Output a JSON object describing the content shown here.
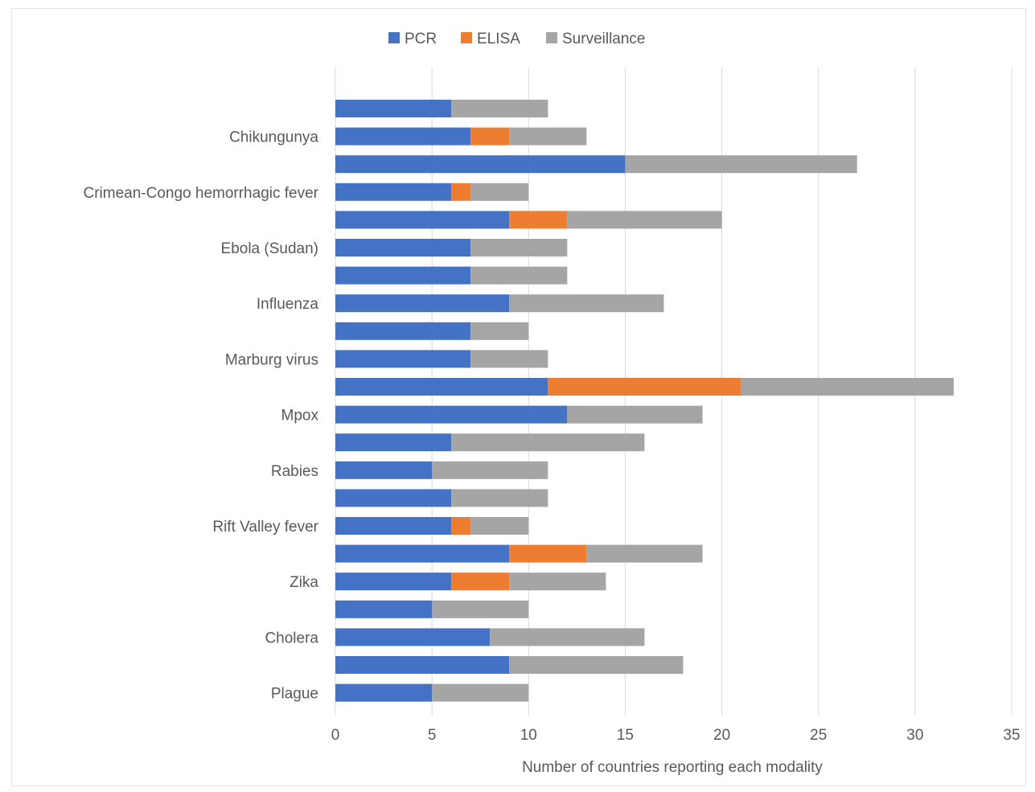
{
  "chart_data": {
    "type": "bar",
    "orientation": "horizontal",
    "stacked": true,
    "title": "",
    "xlabel": "Number of countries reporting each modality",
    "ylabel": "",
    "xlim": [
      0,
      35
    ],
    "x_ticks": [
      0,
      5,
      10,
      15,
      20,
      25,
      30,
      35
    ],
    "grid": "vertical",
    "legend_position": "top",
    "categories": [
      "",
      "Chikungunya",
      "",
      "Crimean-Congo hemorrhagic fever",
      "",
      "Ebola (Sudan)",
      "",
      "Influenza",
      "",
      "Marburg virus",
      "",
      "Mpox",
      "",
      "Rabies",
      "",
      "Rift Valley fever",
      "",
      "Zika",
      "",
      "Cholera",
      "",
      "Plague"
    ],
    "series": [
      {
        "name": "PCR",
        "color": "#4472C4",
        "values": [
          6,
          7,
          15,
          6,
          9,
          7,
          7,
          9,
          7,
          7,
          11,
          12,
          6,
          5,
          6,
          6,
          9,
          6,
          5,
          8,
          9,
          5
        ]
      },
      {
        "name": "ELISA",
        "color": "#ED7D31",
        "values": [
          0,
          2,
          0,
          1,
          3,
          0,
          0,
          0,
          0,
          0,
          10,
          0,
          0,
          0,
          0,
          1,
          4,
          3,
          0,
          0,
          0,
          0
        ]
      },
      {
        "name": "Surveillance",
        "color": "#A5A5A5",
        "values": [
          5,
          4,
          12,
          3,
          8,
          5,
          5,
          8,
          3,
          4,
          11,
          7,
          10,
          6,
          5,
          3,
          6,
          5,
          5,
          8,
          9,
          5
        ]
      }
    ]
  }
}
